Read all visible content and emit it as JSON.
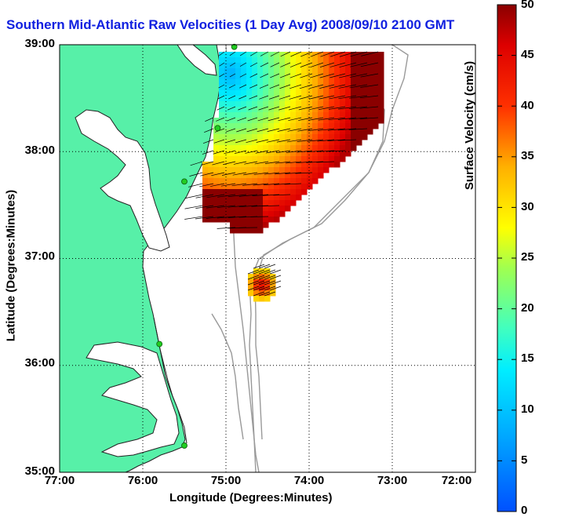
{
  "title": "Southern Mid-Atlantic Raw Velocities (1 Day Avg) 2008/09/10 2100 GMT",
  "xlabel": "Longitude (Degrees:Minutes)",
  "ylabel": "Latitude (Degrees:Minutes)",
  "colorbar": {
    "label": "Surface Velocity (cm/s)",
    "min": 0,
    "max": 50,
    "ticks": [
      "0",
      "5",
      "10",
      "15",
      "20",
      "25",
      "30",
      "35",
      "40",
      "45",
      "50"
    ]
  },
  "axes": {
    "xticks": [
      "77:00",
      "76:00",
      "75:00",
      "74:00",
      "73:00",
      "72:00"
    ],
    "yticks": [
      "39:00",
      "38:00",
      "37:00",
      "36:00",
      "35:00"
    ],
    "lon_range": [
      -77,
      -72
    ],
    "lat_range": [
      35,
      39
    ],
    "grid": true
  },
  "colors": {
    "land": "#57f0a8",
    "coast": "#222222",
    "bathymetry": "#999999",
    "title": "#1020e0",
    "station": "#22cc22"
  },
  "map_data": {
    "stations": [
      {
        "lon": -74.9,
        "lat": 38.98
      },
      {
        "lon": -75.1,
        "lat": 38.22
      },
      {
        "lon": -75.5,
        "lat": 37.72
      },
      {
        "lon": -75.8,
        "lat": 36.2
      },
      {
        "lon": -75.5,
        "lat": 35.25
      }
    ]
  }
}
